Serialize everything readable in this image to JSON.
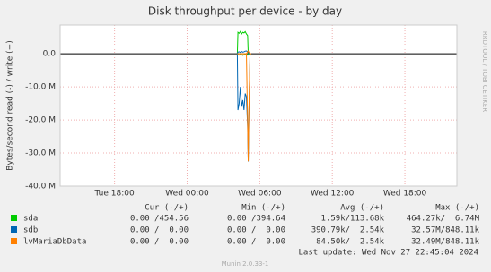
{
  "chart_data": {
    "type": "line",
    "title": "Disk throughput per device - by day",
    "y_label": "Bytes/second read (-) / write (+)",
    "watermark": "RRDTOOL / TOBI OETIKER",
    "ylim": [
      -40000000,
      8700000
    ],
    "yticks": [
      {
        "value": 0,
        "label": "0.0"
      },
      {
        "value": -10000000,
        "label": "-10.0 M"
      },
      {
        "value": -20000000,
        "label": "-20.0 M"
      },
      {
        "value": -30000000,
        "label": "-30.0 M"
      },
      {
        "value": -40000000,
        "label": "-40.0 M"
      }
    ],
    "xlim": [
      13.5,
      46.3
    ],
    "xticks": [
      {
        "value": 18,
        "label": "Tue 18:00"
      },
      {
        "value": 24,
        "label": "Wed 00:00"
      },
      {
        "value": 30,
        "label": "Wed 06:00"
      },
      {
        "value": 36,
        "label": "Wed 12:00"
      },
      {
        "value": 42,
        "label": "Wed 18:00"
      }
    ],
    "grid": true,
    "x": [
      28.15,
      28.2,
      28.3,
      28.4,
      28.5,
      28.6,
      28.7,
      28.8,
      28.9,
      29.0,
      29.05,
      29.1,
      29.2,
      29.3
    ],
    "legend_headers": [
      "Cur (-/+)",
      "Min (-/+)",
      "Avg (-/+)",
      "Max (-/+)"
    ],
    "series": [
      {
        "name": "sda",
        "color": "#00cc00",
        "write": [
          0,
          6500000,
          6200000,
          6740000,
          6000000,
          6500000,
          6300000,
          6700000,
          6000000,
          5500000,
          0,
          0,
          0,
          0
        ],
        "read": [
          0,
          -300000,
          -400000,
          -200000,
          -300000,
          -464000,
          -300000,
          -200000,
          -300000,
          -400000,
          0,
          0,
          0,
          0
        ],
        "stats": [
          "0.00 /454.56",
          "0.00 /394.64",
          "1.59k/113.68k",
          "464.27k/  6.74M"
        ]
      },
      {
        "name": "sdb",
        "color": "#0066b3",
        "write": [
          0,
          500000,
          600000,
          400000,
          700000,
          500000,
          600000,
          800000,
          848000,
          600000,
          500000,
          0,
          0,
          0
        ],
        "read": [
          0,
          -17000000,
          -15000000,
          -10000000,
          -16000000,
          -14000000,
          -17000000,
          -12000000,
          -13000000,
          -22000000,
          -32570000,
          -20000000,
          0,
          0
        ],
        "stats": [
          "0.00 /  0.00",
          "0.00 /  0.00",
          "390.79k/  2.54k",
          "32.57M/848.11k"
        ]
      },
      {
        "name": "lvMariaDbData",
        "color": "#ff8000",
        "write": [
          0,
          0,
          0,
          0,
          0,
          0,
          0,
          0,
          0,
          600000,
          848000,
          500000,
          0,
          0
        ],
        "read": [
          0,
          0,
          0,
          0,
          0,
          0,
          0,
          0,
          0,
          -21000000,
          -32490000,
          -18000000,
          0,
          0
        ],
        "stats": [
          "0.00 /  0.00",
          "0.00 /  0.00",
          "84.50k/  2.54k",
          "32.49M/848.11k"
        ]
      }
    ],
    "last_update": "Last update: Wed Nov 27 22:45:04 2024",
    "footer": "Munin 2.0.33-1"
  }
}
